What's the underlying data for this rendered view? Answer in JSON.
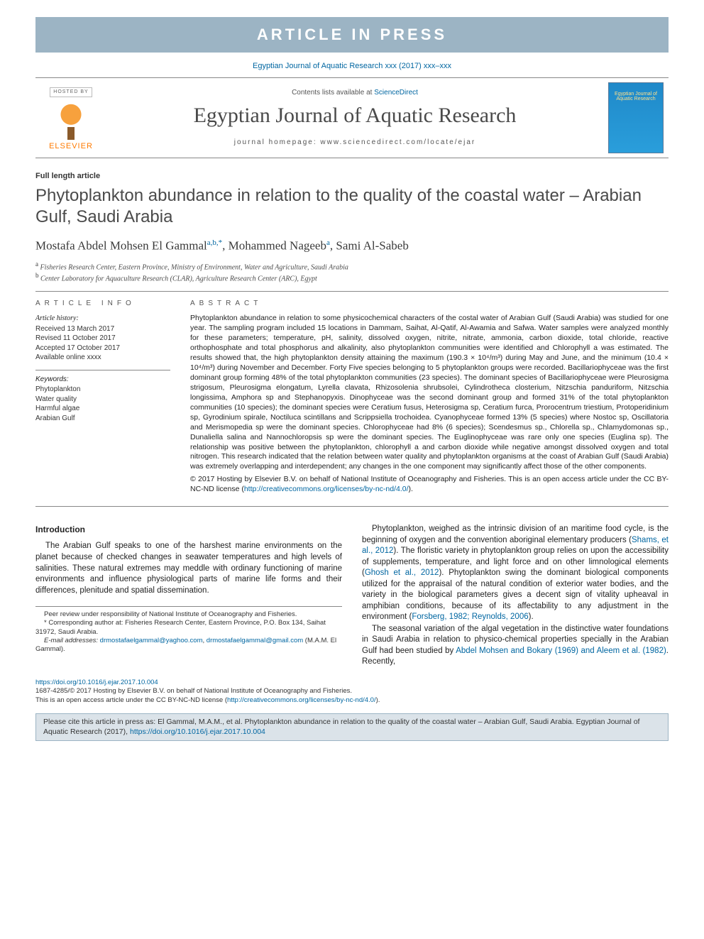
{
  "banner": "ARTICLE IN PRESS",
  "runningHead": "Egyptian Journal of Aquatic Research xxx (2017) xxx–xxx",
  "masthead": {
    "hostedBy": "HOSTED BY",
    "publisher": "ELSEVIER",
    "contentsPrefix": "Contents lists available at ",
    "contentsLink": "ScienceDirect",
    "journalName": "Egyptian Journal of Aquatic Research",
    "homepage": "journal homepage: www.sciencedirect.com/locate/ejar",
    "coverTitle": "Egyptian Journal of Aquatic Research"
  },
  "articleType": "Full length article",
  "title": "Phytoplankton abundance in relation to the quality of the coastal water – Arabian Gulf, Saudi Arabia",
  "authors": [
    {
      "name": "Mostafa Abdel Mohsen El Gammal",
      "marks": "a,b,*"
    },
    {
      "name": "Mohammed Nageeb",
      "marks": "a"
    },
    {
      "name": "Sami Al-Sabeb",
      "marks": ""
    }
  ],
  "affiliations": [
    {
      "sup": "a",
      "text": "Fisheries Research Center, Eastern Province, Ministry of Environment, Water and Agriculture, Saudi Arabia"
    },
    {
      "sup": "b",
      "text": "Center Laboratory for Aquaculture Research (CLAR), Agriculture Research Center (ARC), Egypt"
    }
  ],
  "info": {
    "label": "ARTICLE INFO",
    "historyLabel": "Article history:",
    "history": [
      "Received 13 March 2017",
      "Revised 11 October 2017",
      "Accepted 17 October 2017",
      "Available online xxxx"
    ],
    "keywordsLabel": "Keywords:",
    "keywords": [
      "Phytoplankton",
      "Water quality",
      "Harmful algae",
      "Arabian Gulf"
    ]
  },
  "abstract": {
    "label": "ABSTRACT",
    "text": "Phytoplankton abundance in relation to some physicochemical characters of the costal water of Arabian Gulf (Saudi Arabia) was studied for one year. The sampling program included 15 locations in Dammam, Saihat, Al-Qatif, Al-Awamia and Safwa. Water samples were analyzed monthly for these parameters; temperature, pH, salinity, dissolved oxygen, nitrite, nitrate, ammonia, carbon dioxide, total chloride, reactive orthophosphate and total phosphorus and alkalinity, also phytoplankton communities were identified and Chlorophyll a was estimated. The results showed that, the high phytoplankton density attaining the maximum (190.3 × 10⁴/m³) during May and June, and the minimum (10.4 × 10⁴/m³) during November and December. Forty Five species belonging to 5 phytoplankton groups were recorded. Bacillariophyceae was the first dominant group forming 48% of the total phytoplankton communities (23 species). The dominant species of Bacillariophyceae were Pleurosigma strigosum, Pleurosigma elongatum, Lyrella clavata, Rhizosolenia shrubsolei, Cylindrotheca closterium, Nitzschia panduriform, Nitzschia longissima, Amphora sp and Stephanopyxis. Dinophyceae was the second dominant group and formed 31% of the total phytoplankton communities (10 species); the dominant species were Ceratium fusus, Heterosigma sp, Ceratium furca, Prorocentrum triestium, Protoperidinium sp, Gyrodinium spirale, Noctiluca scintillans and Scrippsiella trochoidea. Cyanophyceae formed 13% (5 species) where Nostoc sp, Oscillatoria and Merismopedia sp were the dominant species. Chlorophyceae had 8% (6 species); Scendesmus sp., Chlorella sp., Chlamydomonas sp., Dunaliella salina and Nannochloropsis sp were the dominant species. The Euglinophyceae was rare only one species (Euglina sp). The relationship was positive between the phytoplankton, chlorophyll a and carbon dioxide while negative amongst dissolved oxygen and total nitrogen. This research indicated that the relation between water quality and phytoplankton organisms at the coast of Arabian Gulf (Saudi Arabia) was extremely overlapping and interdependent; any changes in the one component may significantly affect those of the other components.",
    "license": "© 2017 Hosting by Elsevier B.V. on behalf of National Institute of Oceanography and Fisheries. This is an open access article under the CC BY-NC-ND license (",
    "licenseUrl": "http://creativecommons.org/licenses/by-nc-nd/4.0/",
    "licenseClose": ")."
  },
  "introduction": {
    "heading": "Introduction",
    "leftParas": [
      "The Arabian Gulf speaks to one of the harshest marine environments on the planet because of checked changes in seawater temperatures and high levels of salinities. These natural extremes may meddle with ordinary functioning of marine environments and influence physiological parts of marine life forms and their differences, plenitude and spatial dissemination."
    ],
    "rightParas": [
      "Phytoplankton, weighed as the intrinsic division of an maritime food cycle, is the beginning of oxygen and the convention aboriginal elementary producers (Shams, et al., 2012). The floristic variety in phytoplankton group relies on upon the accessibility of supplements, temperature, and light force and on other limnological elements (Ghosh et al., 2012). Phytoplankton swing the dominant biological components utilized for the appraisal of the natural condition of exterior water bodies, and the variety in the biological parameters gives a decent sign of vitality upheaval in amphibian conditions, because of its affectability to any adjustment in the environment (Forsberg, 1982; Reynolds, 2006).",
      "The seasonal variation of the algal vegetation in the distinctive water foundations in Saudi Arabia in relation to physico-chemical properties specially in the Arabian Gulf had been studied by Abdel Mohsen and Bokary (1969) and Aleem et al. (1982). Recently,"
    ],
    "rightRefs": {
      "shams": "Shams, et al., 2012",
      "ghosh": "Ghosh et al., 2012",
      "forsberg": "Forsberg, 1982; Reynolds, 2006",
      "abdel": "Abdel Mohsen and Bokary (1969) and Aleem et al. (1982)"
    }
  },
  "footnotes": {
    "peer": "Peer review under responsibility of National Institute of Oceanography and Fisheries.",
    "corrLabel": "* Corresponding author at:",
    "corrText": " Fisheries Research Center, Eastern Province, P.O. Box 134, Saihat 31972, Saudi Arabia.",
    "emailLabel": "E-mail addresses:",
    "emails": [
      "drmostafaelgammal@yaghoo.com",
      "drmostafaelgammal@gmail.com"
    ],
    "emailSuffix": " (M.A.M. El Gammal)."
  },
  "licenseFooter": {
    "doi": "https://doi.org/10.1016/j.ejar.2017.10.004",
    "line1": "1687-4285/© 2017 Hosting by Elsevier B.V. on behalf of National Institute of Oceanography and Fisheries.",
    "line2": "This is an open access article under the CC BY-NC-ND license (",
    "url": "http://creativecommons.org/licenses/by-nc-nd/4.0/",
    "close": ")."
  },
  "citeBox": {
    "prefix": "Please cite this article in press as: El Gammal, M.A.M., et al. Phytoplankton abundance in relation to the quality of the coastal water – Arabian Gulf, Saudi Arabia. Egyptian Journal of Aquatic Research (2017), ",
    "url": "https://doi.org/10.1016/j.ejar.2017.10.004"
  },
  "colors": {
    "bannerBg": "#9cb4c4",
    "link": "#0066a1",
    "elsevierOrange": "#ff7a00"
  }
}
